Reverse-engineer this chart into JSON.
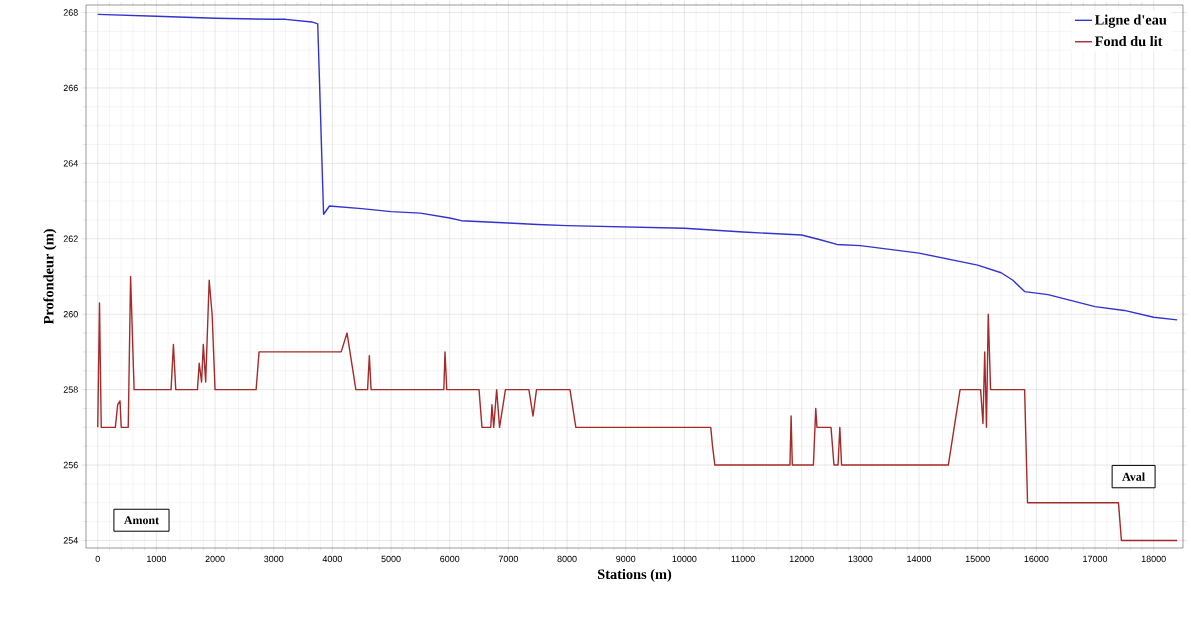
{
  "chart_data": {
    "type": "line",
    "xlabel": "Stations (m)",
    "ylabel": "Profondeur (m)",
    "xlim": [
      -200,
      18500
    ],
    "ylim": [
      253.8,
      268.2
    ],
    "xticks": [
      0,
      1000,
      2000,
      3000,
      4000,
      5000,
      6000,
      7000,
      8000,
      9000,
      10000,
      11000,
      12000,
      13000,
      14000,
      15000,
      16000,
      17000,
      18000
    ],
    "yticks": [
      254,
      256,
      258,
      260,
      262,
      264,
      266,
      268
    ],
    "grid": true,
    "legend": "top right",
    "line_style": "solid",
    "marker": "none",
    "annotations": [
      "Amont",
      "Aval"
    ],
    "series": [
      {
        "name": "Ligne d'eau",
        "color": "#3333cc",
        "x": [
          0,
          1000,
          2000,
          3000,
          3200,
          3650,
          3750,
          3850,
          3950,
          4500,
          5000,
          5500,
          6000,
          6200,
          7000,
          7500,
          8000,
          10000,
          11000,
          12000,
          12300,
          12600,
          13000,
          14000,
          15000,
          15400,
          15600,
          15800,
          16200,
          17000,
          17500,
          18000,
          18400
        ],
        "values": [
          267.95,
          267.9,
          267.85,
          267.82,
          267.82,
          267.75,
          267.7,
          262.65,
          262.87,
          262.8,
          262.72,
          262.68,
          262.55,
          262.48,
          262.42,
          262.38,
          262.35,
          262.28,
          262.18,
          262.1,
          261.98,
          261.85,
          261.82,
          261.62,
          261.3,
          261.1,
          260.9,
          260.6,
          260.52,
          260.2,
          260.1,
          259.92,
          259.85
        ]
      },
      {
        "name": "Fond du lit",
        "color": "#a52a2a",
        "x": [
          0,
          30,
          60,
          300,
          340,
          380,
          400,
          520,
          560,
          620,
          1250,
          1290,
          1330,
          1700,
          1730,
          1770,
          1800,
          1840,
          1900,
          1950,
          2000,
          2700,
          2750,
          4150,
          4250,
          4400,
          4600,
          4630,
          4660,
          5900,
          5920,
          5950,
          6500,
          6550,
          6700,
          6720,
          6750,
          6800,
          6850,
          6950,
          7350,
          7420,
          7480,
          8050,
          8100,
          8150,
          10450,
          10480,
          10520,
          11800,
          11820,
          11840,
          12200,
          12240,
          12260,
          12500,
          12550,
          12620,
          12650,
          12680,
          14500,
          14600,
          14700,
          15050,
          15090,
          15120,
          15150,
          15180,
          15220,
          15800,
          15850,
          17400,
          17450,
          18400
        ],
        "values": [
          257,
          260.3,
          257,
          257,
          257.6,
          257.7,
          257,
          257,
          261,
          258,
          258,
          259.2,
          258,
          258,
          258.7,
          258.2,
          259.2,
          258.2,
          260.9,
          260,
          258,
          258,
          259,
          259,
          259.5,
          258,
          258,
          258.9,
          258,
          258,
          259,
          258,
          258,
          257,
          257,
          257.6,
          257,
          258,
          257,
          258,
          258,
          257.3,
          258,
          258,
          257.5,
          257,
          257,
          256.5,
          256,
          256,
          257.3,
          256,
          256,
          257.5,
          257,
          257,
          256,
          256,
          257,
          256,
          256,
          257,
          258,
          258,
          257.1,
          259,
          257,
          260,
          258,
          258,
          255,
          255,
          254,
          254
        ]
      }
    ]
  }
}
